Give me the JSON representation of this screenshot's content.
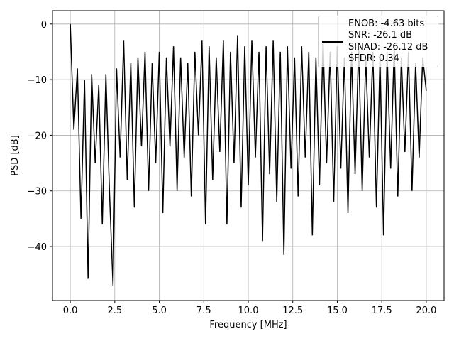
{
  "chart_data": {
    "type": "line",
    "x_label": "Frequency [MHz]",
    "y_label": "PSD [dB]",
    "x": [
      0.0,
      0.2,
      0.4,
      0.6,
      0.8,
      1.0,
      1.2,
      1.4,
      1.6,
      1.8,
      2.0,
      2.2,
      2.4,
      2.6,
      2.8,
      3.0,
      3.2,
      3.4,
      3.6,
      3.8,
      4.0,
      4.2,
      4.4,
      4.6,
      4.8,
      5.0,
      5.2,
      5.4,
      5.6,
      5.8,
      6.0,
      6.2,
      6.4,
      6.6,
      6.8,
      7.0,
      7.2,
      7.4,
      7.6,
      7.8,
      8.0,
      8.2,
      8.4,
      8.6,
      8.8,
      9.0,
      9.2,
      9.4,
      9.6,
      9.8,
      10.0,
      10.2,
      10.4,
      10.6,
      10.8,
      11.0,
      11.2,
      11.4,
      11.6,
      11.8,
      12.0,
      12.2,
      12.4,
      12.6,
      12.8,
      13.0,
      13.2,
      13.4,
      13.6,
      13.8,
      14.0,
      14.2,
      14.4,
      14.6,
      14.8,
      15.0,
      15.2,
      15.4,
      15.6,
      15.8,
      16.0,
      16.2,
      16.4,
      16.6,
      16.8,
      17.0,
      17.2,
      17.4,
      17.6,
      17.8,
      18.0,
      18.2,
      18.4,
      18.6,
      18.8,
      19.0,
      19.2,
      19.4,
      19.6,
      19.8,
      20.0
    ],
    "series": [
      {
        "name": "ENOB: -4.63 bits\nSNR: -26.1 dB\nSINAD: -26.12 dB\nSFDR: 0.34",
        "color": "#000000",
        "values": [
          0,
          -19,
          -8,
          -35,
          -10,
          -45.8,
          -9,
          -25,
          -11,
          -36,
          -9,
          -30,
          -47,
          -8,
          -24,
          -3,
          -28,
          -7,
          -33,
          -6,
          -22,
          -5,
          -30,
          -7,
          -25,
          -5,
          -34,
          -6,
          -22,
          -4,
          -30,
          -6,
          -24,
          -7,
          -31,
          -5,
          -20,
          -3,
          -36,
          -4,
          -28,
          -6,
          -23,
          -3,
          -36,
          -5,
          -25,
          -2,
          -33,
          -4,
          -29,
          -3,
          -24,
          -5,
          -39,
          -4,
          -27,
          -3,
          -32,
          -5,
          -41.5,
          -4,
          -26,
          -6,
          -31,
          -4,
          -24,
          -5,
          -38,
          -6,
          -29,
          -3,
          -25,
          -5,
          -32,
          -4,
          -26,
          -6,
          -34,
          -5,
          -27,
          -4,
          -30,
          -6,
          -24,
          -5,
          -33,
          -6,
          -38,
          -5,
          -26,
          -4,
          -31,
          -6,
          -23,
          -5,
          -30,
          -7,
          -24,
          -6,
          -12
        ]
      }
    ],
    "xlim": [
      -1.0,
      21.0
    ],
    "ylim": [
      -49.7,
      2.4
    ],
    "xticks": [
      {
        "value": 0,
        "label": "0.0"
      },
      {
        "value": 2.5,
        "label": "2.5"
      },
      {
        "value": 5,
        "label": "5.0"
      },
      {
        "value": 7.5,
        "label": "7.5"
      },
      {
        "value": 10,
        "label": "10.0"
      },
      {
        "value": 12.5,
        "label": "12.5"
      },
      {
        "value": 15,
        "label": "15.0"
      },
      {
        "value": 17.5,
        "label": "17.5"
      },
      {
        "value": 20,
        "label": "20.0"
      }
    ],
    "yticks": [
      {
        "value": -40,
        "label": "−40"
      },
      {
        "value": -30,
        "label": "−30"
      },
      {
        "value": -20,
        "label": "−20"
      },
      {
        "value": -10,
        "label": "−10"
      },
      0
    ],
    "grid": true,
    "legend": "upper right"
  }
}
